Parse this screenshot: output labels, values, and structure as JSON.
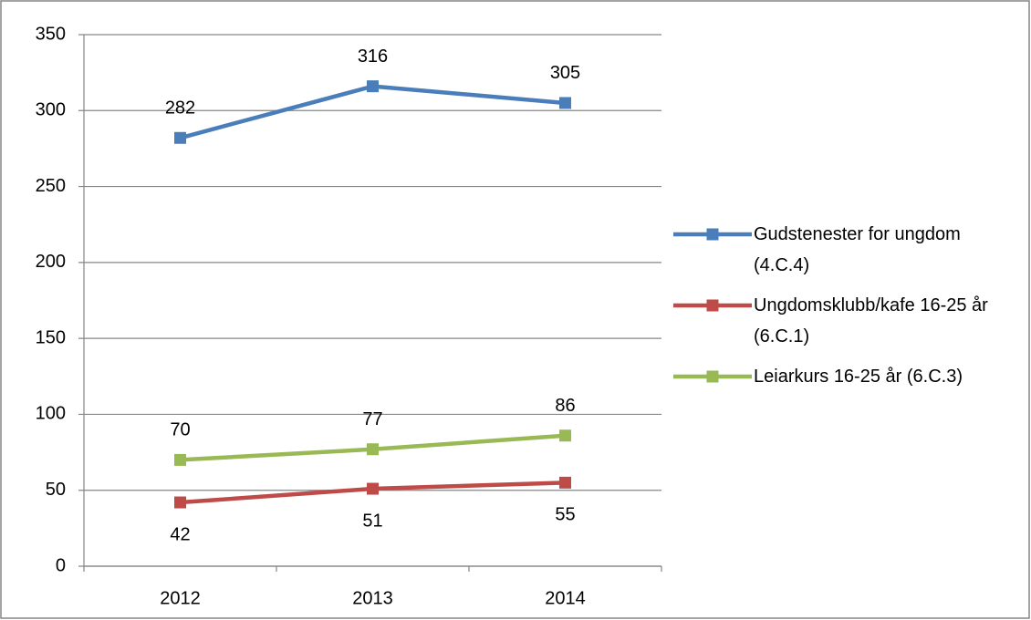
{
  "chart_data": {
    "type": "line",
    "categories": [
      "2012",
      "2013",
      "2014"
    ],
    "series": [
      {
        "name": "Gudstenester for ungdom (4.C.4)",
        "color": "#4a7ebb",
        "values": [
          282,
          316,
          305
        ]
      },
      {
        "name": "Ungdomsklubb/kafe 16-25 år (6.C.1)",
        "color": "#be4b48",
        "values": [
          42,
          51,
          55
        ]
      },
      {
        "name": "Leiarkurs 16-25 år (6.C.3)",
        "color": "#98b954",
        "values": [
          70,
          77,
          86
        ]
      }
    ],
    "ylim": [
      0,
      350
    ],
    "yticks": [
      0,
      50,
      100,
      150,
      200,
      250,
      300,
      350
    ],
    "grid": true,
    "legend": "right"
  }
}
